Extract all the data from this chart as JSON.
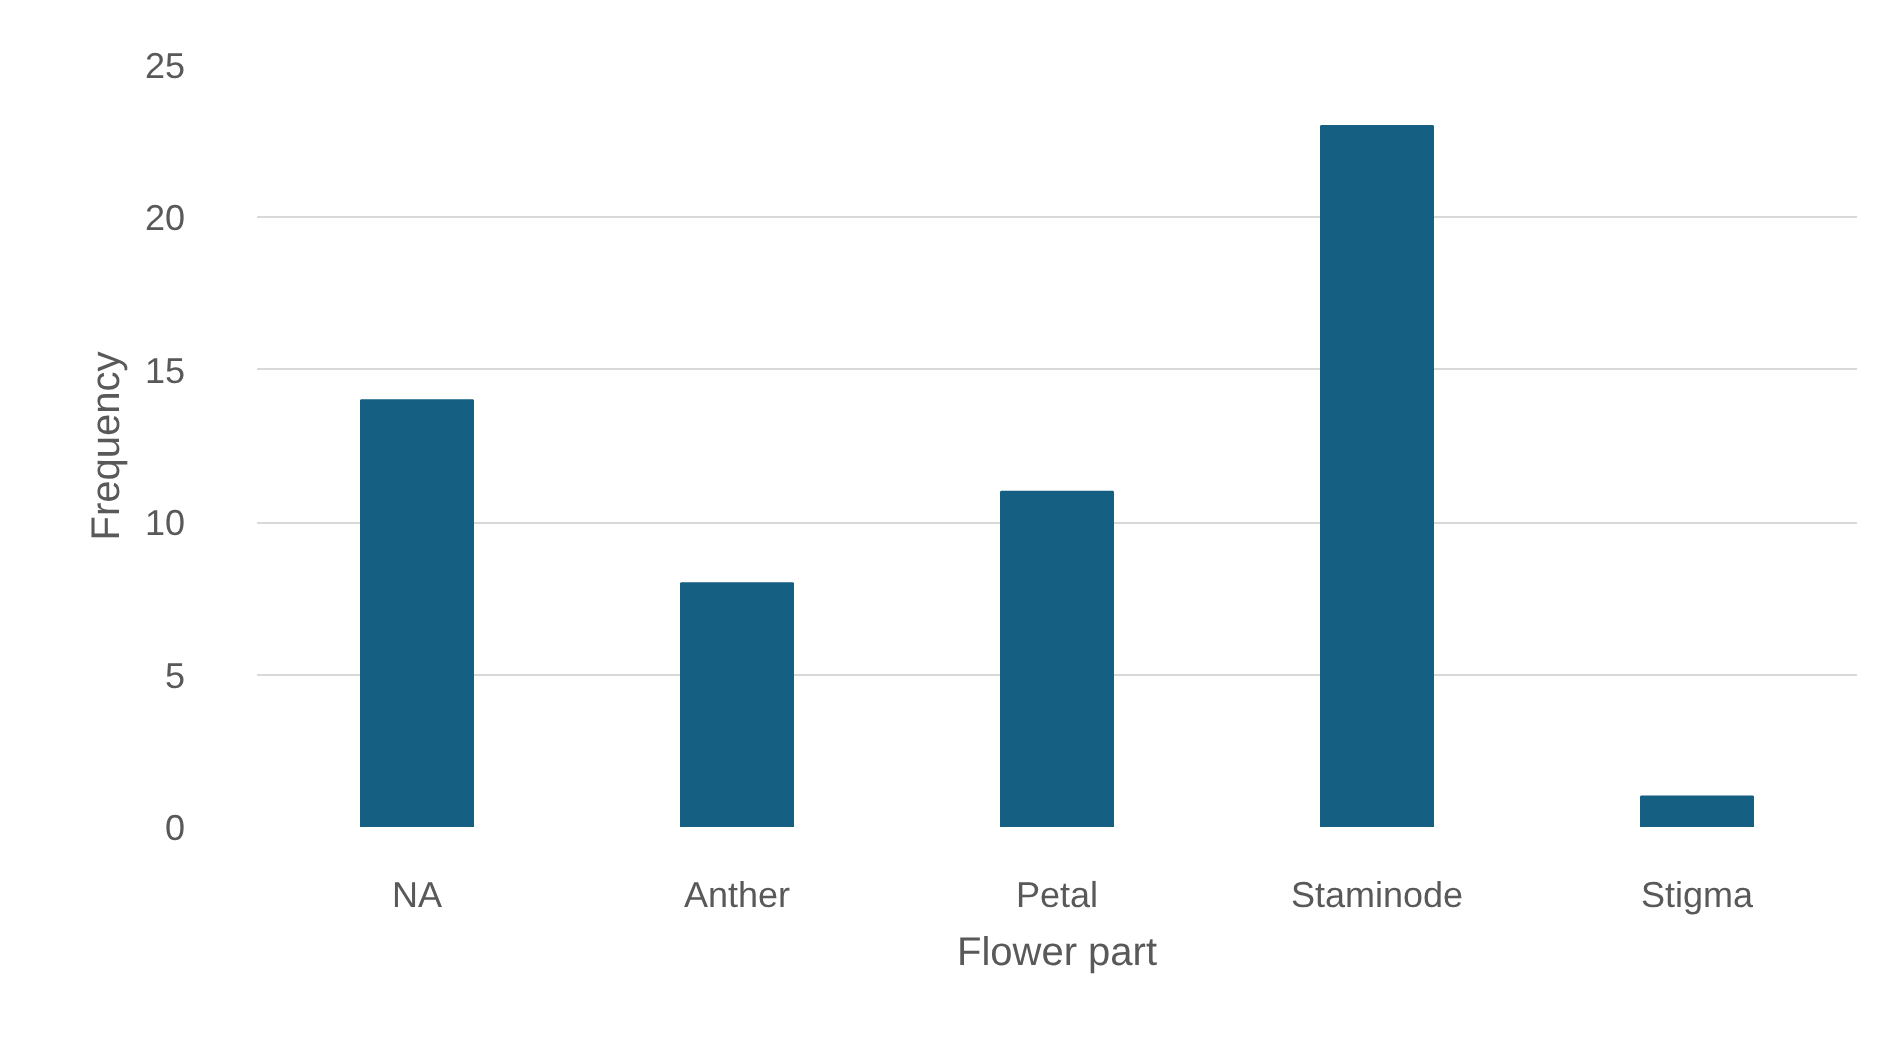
{
  "chart_data": {
    "type": "bar",
    "xlabel": "Flower part",
    "ylabel": "Frequency",
    "categories": [
      "NA",
      "Anther",
      "Petal",
      "Staminode",
      "Stigma"
    ],
    "values": [
      14,
      8,
      11,
      23,
      1
    ],
    "color": "#155f82",
    "ylim": [
      0,
      25
    ],
    "yticks": [
      0,
      5,
      10,
      15,
      20,
      25
    ],
    "grid": "y"
  }
}
